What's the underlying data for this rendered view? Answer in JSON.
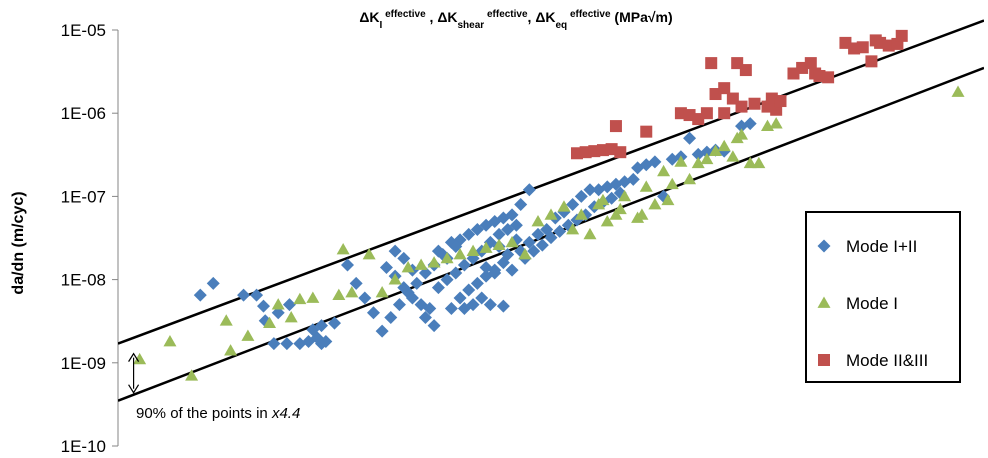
{
  "chart_data": {
    "type": "scatter",
    "title": {
      "parts": [
        {
          "text": "ΔK",
          "style": "normal"
        },
        {
          "text": "I",
          "style": "sub"
        },
        {
          "text": " effective",
          "style": "sup"
        },
        {
          "text": " , ΔK",
          "style": "normal"
        },
        {
          "text": "shear",
          "style": "sub"
        },
        {
          "text": " effective",
          "style": "sup"
        },
        {
          "text": ", ΔK",
          "style": "normal"
        },
        {
          "text": "eq",
          "style": "sub"
        },
        {
          "text": " effective",
          "style": "sup"
        },
        {
          "text": " (MPa√m)",
          "style": "normal"
        }
      ]
    },
    "ylabel": "da/dn (m/cyc)",
    "xlabel": "",
    "y_scale": "log",
    "ylim": [
      1e-10,
      1e-05
    ],
    "xlim": [
      0,
      100
    ],
    "y_ticks": [
      {
        "value": 1e-10,
        "label": "1E-10"
      },
      {
        "value": 1e-09,
        "label": "1E-09"
      },
      {
        "value": 1e-08,
        "label": "1E-08"
      },
      {
        "value": 1e-07,
        "label": "1E-07"
      },
      {
        "value": 1e-06,
        "label": "1E-06"
      },
      {
        "value": 1e-05,
        "label": "1E-05"
      }
    ],
    "grid": false,
    "legend_position": "right",
    "series": [
      {
        "name": "Mode I+II",
        "marker": "diamond",
        "color": "#4A7EBB",
        "points": [
          [
            9.5,
            6.5e-09
          ],
          [
            11.0,
            9e-09
          ],
          [
            14.5,
            6.5e-09
          ],
          [
            16.0,
            6.5e-09
          ],
          [
            16.8,
            4.8e-09
          ],
          [
            18.5,
            4e-09
          ],
          [
            19.8,
            5e-09
          ],
          [
            17.0,
            3.2e-09
          ],
          [
            18.0,
            1.7e-09
          ],
          [
            19.5,
            1.7e-09
          ],
          [
            21.0,
            1.7e-09
          ],
          [
            22.0,
            1.8e-09
          ],
          [
            23.0,
            2e-09
          ],
          [
            24.0,
            1.8e-09
          ],
          [
            23.5,
            2.8e-09
          ],
          [
            25.0,
            3e-09
          ],
          [
            23.5,
            1.7e-09
          ],
          [
            22.5,
            2.5e-09
          ],
          [
            26.5,
            1.5e-08
          ],
          [
            27.5,
            9e-09
          ],
          [
            28.5,
            6e-09
          ],
          [
            29.5,
            4e-09
          ],
          [
            30.5,
            2.4e-09
          ],
          [
            31.5,
            3.5e-09
          ],
          [
            32.5,
            5e-09
          ],
          [
            33.5,
            7e-09
          ],
          [
            34.5,
            9e-09
          ],
          [
            35.5,
            1.2e-08
          ],
          [
            36.5,
            1.5e-08
          ],
          [
            37.5,
            2e-08
          ],
          [
            38.5,
            2.8e-08
          ],
          [
            39.5,
            3e-08
          ],
          [
            40.5,
            3.5e-08
          ],
          [
            41.5,
            4e-08
          ],
          [
            42.5,
            4.5e-08
          ],
          [
            43.5,
            5e-08
          ],
          [
            44.5,
            5.5e-08
          ],
          [
            45.5,
            6e-08
          ],
          [
            46.5,
            8e-08
          ],
          [
            47.5,
            1.2e-07
          ],
          [
            31.0,
            1.4e-08
          ],
          [
            32.0,
            1.1e-08
          ],
          [
            33.0,
            8e-09
          ],
          [
            34.0,
            6e-09
          ],
          [
            35.0,
            5e-09
          ],
          [
            36.0,
            4.5e-09
          ],
          [
            37.0,
            8e-09
          ],
          [
            38.0,
            1e-08
          ],
          [
            39.0,
            1.2e-08
          ],
          [
            40.0,
            1.5e-08
          ],
          [
            41.0,
            1.8e-08
          ],
          [
            42.0,
            2.2e-08
          ],
          [
            43.0,
            2.8e-08
          ],
          [
            44.0,
            3.5e-08
          ],
          [
            45.0,
            4e-08
          ],
          [
            46.0,
            4.5e-08
          ],
          [
            35.5,
            3.5e-09
          ],
          [
            36.5,
            2.8e-09
          ],
          [
            38.5,
            4.5e-09
          ],
          [
            39.5,
            6e-09
          ],
          [
            40.5,
            7.5e-09
          ],
          [
            41.5,
            9e-09
          ],
          [
            42.5,
            1.1e-08
          ],
          [
            43.5,
            1.3e-08
          ],
          [
            44.5,
            1.6e-08
          ],
          [
            45.5,
            1.3e-08
          ],
          [
            46.5,
            2.2e-08
          ],
          [
            47.5,
            2.8e-08
          ],
          [
            48.5,
            3.5e-08
          ],
          [
            49.5,
            4e-08
          ],
          [
            50.5,
            5.5e-08
          ],
          [
            51.5,
            6.5e-08
          ],
          [
            52.5,
            8e-08
          ],
          [
            53.5,
            1e-07
          ],
          [
            54.5,
            1.2e-07
          ],
          [
            55.5,
            1.2e-07
          ],
          [
            56.5,
            1.3e-07
          ],
          [
            57.5,
            1.4e-07
          ],
          [
            58.5,
            1.5e-07
          ],
          [
            59.5,
            1.6e-07
          ],
          [
            40.0,
            4.5e-09
          ],
          [
            41.0,
            5e-09
          ],
          [
            42.0,
            6e-09
          ],
          [
            43.0,
            5e-09
          ],
          [
            44.5,
            4.8e-09
          ],
          [
            38.0,
            1.8e-08
          ],
          [
            39.0,
            2.5e-08
          ],
          [
            37.0,
            2.2e-08
          ],
          [
            47.0,
            1.8e-08
          ],
          [
            48.0,
            2.2e-08
          ],
          [
            49.0,
            2.6e-08
          ],
          [
            50.0,
            3.2e-08
          ],
          [
            51.0,
            3.8e-08
          ],
          [
            52.0,
            4.5e-08
          ],
          [
            53.0,
            5.2e-08
          ],
          [
            54.0,
            6e-08
          ],
          [
            55.0,
            7.5e-08
          ],
          [
            56.0,
            8.5e-08
          ],
          [
            57.0,
            9.5e-08
          ],
          [
            58.0,
            1.1e-07
          ],
          [
            60.0,
            2.2e-07
          ],
          [
            61.0,
            2.4e-07
          ],
          [
            62.0,
            2.6e-07
          ],
          [
            63.0,
            1e-07
          ],
          [
            64.0,
            2.8e-07
          ],
          [
            65.0,
            3e-07
          ],
          [
            66.0,
            5e-07
          ],
          [
            67.0,
            3.2e-07
          ],
          [
            68.0,
            3.4e-07
          ],
          [
            69.0,
            3.6e-07
          ],
          [
            70.0,
            3.5e-07
          ],
          [
            72.0,
            7e-07
          ],
          [
            73.0,
            7.5e-07
          ],
          [
            42.5,
            1.4e-08
          ],
          [
            43.5,
            1.2e-08
          ],
          [
            44.0,
            2.5e-08
          ],
          [
            45.0,
            2e-08
          ],
          [
            46.0,
            3e-08
          ],
          [
            34.0,
            1.3e-08
          ],
          [
            33.0,
            1.8e-08
          ],
          [
            32.0,
            2.2e-08
          ]
        ]
      },
      {
        "name": "Mode I",
        "marker": "triangle",
        "color": "#9BBB59",
        "points": [
          [
            2.5,
            1.1e-09
          ],
          [
            6.0,
            1.8e-09
          ],
          [
            8.5,
            7e-10
          ],
          [
            12.5,
            3.2e-09
          ],
          [
            13.0,
            1.4e-09
          ],
          [
            15.0,
            2.1e-09
          ],
          [
            17.5,
            3e-09
          ],
          [
            18.5,
            5e-09
          ],
          [
            20.0,
            3.5e-09
          ],
          [
            21.0,
            5.8e-09
          ],
          [
            22.5,
            6e-09
          ],
          [
            25.5,
            6.5e-09
          ],
          [
            26.0,
            2.3e-08
          ],
          [
            27.0,
            7e-09
          ],
          [
            29.0,
            2e-08
          ],
          [
            30.5,
            7e-09
          ],
          [
            32.0,
            1e-08
          ],
          [
            33.5,
            1.4e-08
          ],
          [
            35.0,
            1.5e-08
          ],
          [
            36.5,
            1.6e-08
          ],
          [
            38.0,
            1.8e-08
          ],
          [
            39.5,
            2e-08
          ],
          [
            41.0,
            2.2e-08
          ],
          [
            42.5,
            2.4e-08
          ],
          [
            44.0,
            2.6e-08
          ],
          [
            45.5,
            2.8e-08
          ],
          [
            47.0,
            2e-08
          ],
          [
            48.5,
            5e-08
          ],
          [
            50.0,
            6e-08
          ],
          [
            51.5,
            7.5e-08
          ],
          [
            52.5,
            4e-08
          ],
          [
            53.5,
            6e-08
          ],
          [
            54.5,
            3.5e-08
          ],
          [
            55.5,
            8e-08
          ],
          [
            56.5,
            5e-08
          ],
          [
            57.5,
            6e-08
          ],
          [
            58.5,
            1e-07
          ],
          [
            60.0,
            5.5e-08
          ],
          [
            61.0,
            1.3e-07
          ],
          [
            62.0,
            8e-08
          ],
          [
            63.0,
            2e-07
          ],
          [
            64.0,
            1.4e-07
          ],
          [
            65.0,
            2.6e-07
          ],
          [
            66.0,
            1.6e-07
          ],
          [
            67.0,
            2.5e-07
          ],
          [
            68.0,
            2.8e-07
          ],
          [
            69.0,
            3.5e-07
          ],
          [
            70.0,
            4e-07
          ],
          [
            71.0,
            3e-07
          ],
          [
            72.0,
            5.5e-07
          ],
          [
            73.0,
            2.5e-07
          ],
          [
            74.0,
            2.5e-07
          ],
          [
            75.0,
            7e-07
          ],
          [
            76.0,
            7.5e-07
          ],
          [
            71.5,
            5e-07
          ],
          [
            97.0,
            1.8e-06
          ],
          [
            63.5,
            9e-08
          ],
          [
            60.5,
            6e-08
          ],
          [
            58.0,
            7e-08
          ],
          [
            56.0,
            9e-08
          ]
        ]
      },
      {
        "name": "Mode II&III",
        "marker": "square",
        "color": "#C0504D",
        "points": [
          [
            53.0,
            3.3e-07
          ],
          [
            54.0,
            3.4e-07
          ],
          [
            55.0,
            3.5e-07
          ],
          [
            56.0,
            3.6e-07
          ],
          [
            57.0,
            3.7e-07
          ],
          [
            58.0,
            3.4e-07
          ],
          [
            57.5,
            7e-07
          ],
          [
            61.0,
            6e-07
          ],
          [
            65.0,
            1e-06
          ],
          [
            66.0,
            9.5e-07
          ],
          [
            67.0,
            8.5e-07
          ],
          [
            68.0,
            1e-06
          ],
          [
            69.0,
            1.7e-06
          ],
          [
            70.0,
            2e-06
          ],
          [
            71.0,
            1.5e-06
          ],
          [
            72.0,
            1.2e-06
          ],
          [
            70.0,
            1e-06
          ],
          [
            68.5,
            4e-06
          ],
          [
            71.5,
            4e-06
          ],
          [
            72.5,
            3.3e-06
          ],
          [
            73.5,
            1.3e-06
          ],
          [
            75.5,
            1.5e-06
          ],
          [
            76.0,
            1.1e-06
          ],
          [
            76.5,
            1.4e-06
          ],
          [
            78.0,
            3e-06
          ],
          [
            79.0,
            3.5e-06
          ],
          [
            80.0,
            4e-06
          ],
          [
            80.5,
            3e-06
          ],
          [
            81.0,
            2.8e-06
          ],
          [
            82.0,
            2.7e-06
          ],
          [
            84.0,
            7e-06
          ],
          [
            85.0,
            6e-06
          ],
          [
            86.0,
            6.2e-06
          ],
          [
            87.0,
            4.2e-06
          ],
          [
            87.5,
            7.5e-06
          ],
          [
            88.0,
            7e-06
          ],
          [
            89.0,
            6.5e-06
          ],
          [
            90.0,
            6.8e-06
          ],
          [
            90.5,
            8.5e-06
          ],
          [
            75.0,
            1.2e-06
          ]
        ]
      }
    ],
    "trend_lines": [
      {
        "name": "upper",
        "x": [
          0,
          100
        ],
        "y": [
          1.7e-09,
          1.3e-05
        ]
      },
      {
        "name": "lower",
        "x": [
          0,
          100
        ],
        "y": [
          3.5e-10,
          3.5e-06
        ]
      }
    ],
    "annotation": {
      "text_plain": "90% of the points in ",
      "text_italic": "x4.4",
      "arrow_x": 1.8
    }
  }
}
